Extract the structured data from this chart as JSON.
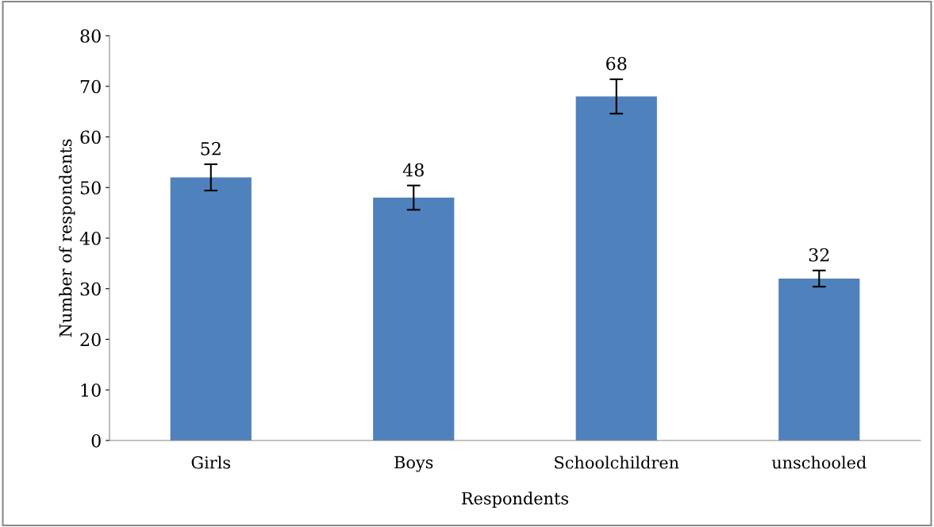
{
  "chart_data": {
    "type": "bar",
    "xlabel": "Respondents",
    "ylabel": "Number of respondents",
    "categories": [
      "Girls",
      "Boys",
      "Schoolchildren",
      "unschooled"
    ],
    "values": [
      52,
      48,
      68,
      32
    ],
    "errors": [
      2.6,
      2.4,
      3.4,
      1.6
    ],
    "color": "#4f81bd",
    "ylim": [
      0,
      80
    ],
    "yticks": [
      0,
      10,
      20,
      30,
      40,
      50,
      60,
      70,
      80
    ],
    "data_labels": true,
    "grid": false,
    "legend": false
  }
}
